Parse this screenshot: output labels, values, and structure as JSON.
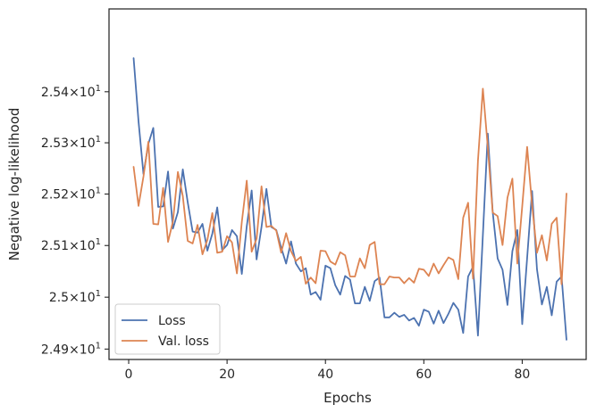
{
  "chart_data": {
    "type": "line",
    "xlabel": "Epochs",
    "ylabel": "Negative log-likelihood",
    "xlim": [
      -4,
      93
    ],
    "ylim": [
      24.88,
      25.563
    ],
    "yscale": "log",
    "grid": false,
    "legend_position": "lower-left",
    "xticks": [
      {
        "value": 0,
        "label": "0"
      },
      {
        "value": 20,
        "label": "20"
      },
      {
        "value": 40,
        "label": "40"
      },
      {
        "value": 60,
        "label": "60"
      },
      {
        "value": 80,
        "label": "80"
      }
    ],
    "yticks": [
      {
        "value": 24.9,
        "label_mantissa": "2.49",
        "label_base": "10",
        "label_exp": "1"
      },
      {
        "value": 25.0,
        "label_mantissa": "2.5",
        "label_base": "10",
        "label_exp": "1"
      },
      {
        "value": 25.1,
        "label_mantissa": "2.51",
        "label_base": "10",
        "label_exp": "1"
      },
      {
        "value": 25.2,
        "label_mantissa": "2.52",
        "label_base": "10",
        "label_exp": "1"
      },
      {
        "value": 25.3,
        "label_mantissa": "2.53",
        "label_base": "10",
        "label_exp": "1"
      },
      {
        "value": 25.4,
        "label_mantissa": "2.54",
        "label_base": "10",
        "label_exp": "1"
      }
    ],
    "x": [
      1,
      2,
      3,
      4,
      5,
      6,
      7,
      8,
      9,
      10,
      11,
      12,
      13,
      14,
      15,
      16,
      17,
      18,
      19,
      20,
      21,
      22,
      23,
      24,
      25,
      26,
      27,
      28,
      29,
      30,
      31,
      32,
      33,
      34,
      35,
      36,
      37,
      38,
      39,
      40,
      41,
      42,
      43,
      44,
      45,
      46,
      47,
      48,
      49,
      50,
      51,
      52,
      53,
      54,
      55,
      56,
      57,
      58,
      59,
      60,
      61,
      62,
      63,
      64,
      65,
      66,
      67,
      68,
      69,
      70,
      71,
      72,
      73,
      74,
      75,
      76,
      77,
      78,
      79,
      80,
      81,
      82,
      83,
      84,
      85,
      86,
      87,
      88,
      89
    ],
    "series": [
      {
        "name": "Loss",
        "color": "#4c72b0",
        "values": [
          25.466,
          25.342,
          25.239,
          25.298,
          25.329,
          25.175,
          25.176,
          25.244,
          25.133,
          25.165,
          25.248,
          25.184,
          25.127,
          25.125,
          25.142,
          25.09,
          25.123,
          25.174,
          25.091,
          25.101,
          25.13,
          25.118,
          25.045,
          25.137,
          25.207,
          25.073,
          25.136,
          25.21,
          25.136,
          25.13,
          25.096,
          25.065,
          25.108,
          25.065,
          25.05,
          25.056,
          25.005,
          25.01,
          24.995,
          25.061,
          25.056,
          25.023,
          25.005,
          25.041,
          25.034,
          24.988,
          24.988,
          25.02,
          24.993,
          25.031,
          25.038,
          24.961,
          24.961,
          24.97,
          24.962,
          24.966,
          24.955,
          24.96,
          24.945,
          24.976,
          24.972,
          24.949,
          24.974,
          24.95,
          24.968,
          24.989,
          24.976,
          24.931,
          25.04,
          25.059,
          24.926,
          25.12,
          25.318,
          25.165,
          25.075,
          25.053,
          24.985,
          25.089,
          25.13,
          24.948,
          25.076,
          25.206,
          25.054,
          24.986,
          25.02,
          24.965,
          25.03,
          25.04,
          24.918
        ]
      },
      {
        "name": "Val. loss",
        "color": "#dd8452",
        "values": [
          25.253,
          25.177,
          25.234,
          25.302,
          25.142,
          25.141,
          25.212,
          25.107,
          25.147,
          25.243,
          25.196,
          25.109,
          25.104,
          25.14,
          25.083,
          25.111,
          25.163,
          25.086,
          25.088,
          25.118,
          25.106,
          25.046,
          25.146,
          25.226,
          25.088,
          25.113,
          25.215,
          25.136,
          25.138,
          25.129,
          25.086,
          25.124,
          25.089,
          25.07,
          25.078,
          25.026,
          25.038,
          25.027,
          25.09,
          25.089,
          25.069,
          25.063,
          25.087,
          25.081,
          25.04,
          25.04,
          25.075,
          25.056,
          25.101,
          25.107,
          25.025,
          25.025,
          25.04,
          25.038,
          25.038,
          25.027,
          25.037,
          25.028,
          25.055,
          25.053,
          25.041,
          25.065,
          25.046,
          25.062,
          25.077,
          25.072,
          25.035,
          25.154,
          25.183,
          25.036,
          25.265,
          25.406,
          25.292,
          25.164,
          25.157,
          25.101,
          25.193,
          25.23,
          25.065,
          25.176,
          25.292,
          25.179,
          25.086,
          25.12,
          25.071,
          25.142,
          25.154,
          25.025,
          25.201
        ]
      }
    ]
  }
}
